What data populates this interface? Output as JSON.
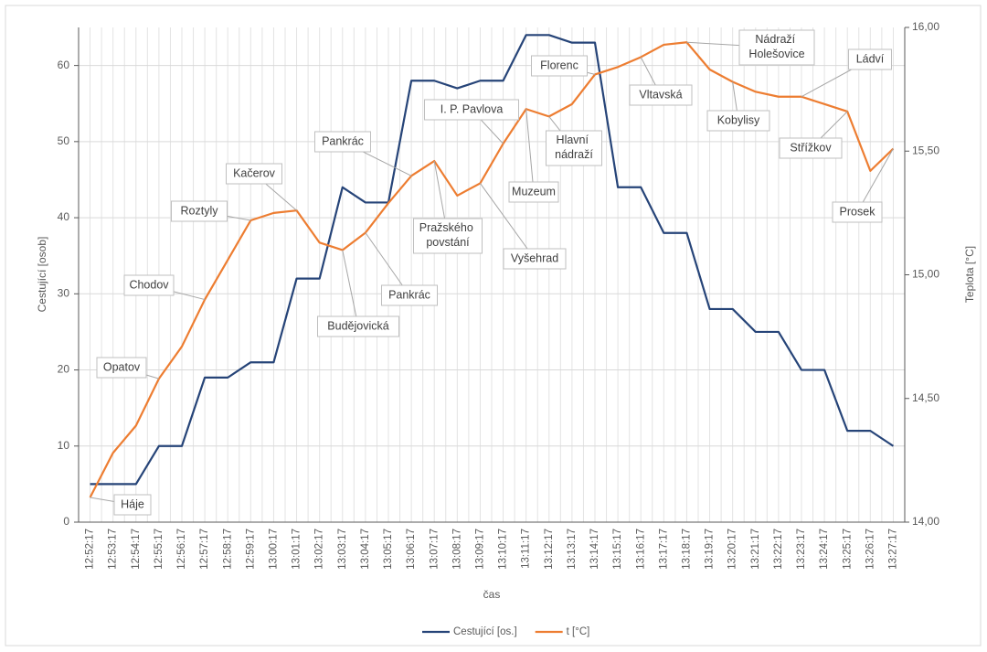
{
  "chart_data": {
    "type": "line",
    "x_label": "čas",
    "y_label": "Cestující [osob]",
    "y2_label": "Teplota [°C]",
    "categories": [
      "12:52:17",
      "12:53:17",
      "12:54:17",
      "12:55:17",
      "12:56:17",
      "12:57:17",
      "12:58:17",
      "12:59:17",
      "13:00:17",
      "13:01:17",
      "13:02:17",
      "13:03:17",
      "13:04:17",
      "13:05:17",
      "13:06:17",
      "13:07:17",
      "13:08:17",
      "13:09:17",
      "13:10:17",
      "13:11:17",
      "13:12:17",
      "13:13:17",
      "13:14:17",
      "13:15:17",
      "13:16:17",
      "13:17:17",
      "13:18:17",
      "13:19:17",
      "13:20:17",
      "13:21:17",
      "13:22:17",
      "13:23:17",
      "13:24:17",
      "13:25:17",
      "13:26:17",
      "13:27:17"
    ],
    "series": [
      {
        "name": "Cestující [os.]",
        "color": "#264478",
        "values": [
          5,
          5,
          5,
          10,
          10,
          19,
          19,
          21,
          21,
          32,
          32,
          44,
          42,
          42,
          58,
          58,
          57,
          58,
          58,
          64,
          64,
          63,
          63,
          44,
          44,
          38,
          38,
          28,
          28,
          25,
          25,
          20,
          20,
          12,
          12,
          10
        ]
      },
      {
        "name": "t [°C]",
        "color": "#ed7d31",
        "axis": "y2",
        "values": [
          14.1,
          14.28,
          14.39,
          14.58,
          14.71,
          14.9,
          15.06,
          15.22,
          15.25,
          15.26,
          15.13,
          15.1,
          15.17,
          15.29,
          15.4,
          15.46,
          15.32,
          15.37,
          15.53,
          15.67,
          15.64,
          15.69,
          15.81,
          15.84,
          15.88,
          15.93,
          15.94,
          15.83,
          15.78,
          15.74,
          15.72,
          15.72,
          15.69,
          15.66,
          15.42,
          15.51
        ]
      }
    ],
    "point_labels": [
      "Háje",
      null,
      null,
      "Opatov",
      null,
      "Chodov",
      null,
      "Roztyly",
      null,
      "Kačerov",
      null,
      "Budějovická",
      "Pankrác",
      null,
      "Pankrác",
      "Pražského povstání",
      null,
      "Vyšehrad",
      "I. P. Pavlova",
      "Muzeum",
      "Hlavní nádraží",
      null,
      "Florenc",
      null,
      "Vltavská",
      null,
      "Nádraží Holešovice",
      null,
      "Kobylisy",
      null,
      null,
      "Ládví",
      null,
      "Střížkov",
      null,
      "Prosek"
    ],
    "ylim": [
      0,
      65
    ],
    "yticks": [
      0,
      10,
      20,
      30,
      40,
      50,
      60
    ],
    "y2lim": [
      14,
      16
    ],
    "y2ticks": [
      {
        "value": 14,
        "label": "14,00"
      },
      {
        "value": 14.5,
        "label": "14,50"
      },
      {
        "value": 15,
        "label": "15,00"
      },
      {
        "value": 15.5,
        "label": "15,50"
      },
      {
        "value": 16,
        "label": "16,00"
      }
    ],
    "grid": true,
    "legend": "bottom"
  }
}
